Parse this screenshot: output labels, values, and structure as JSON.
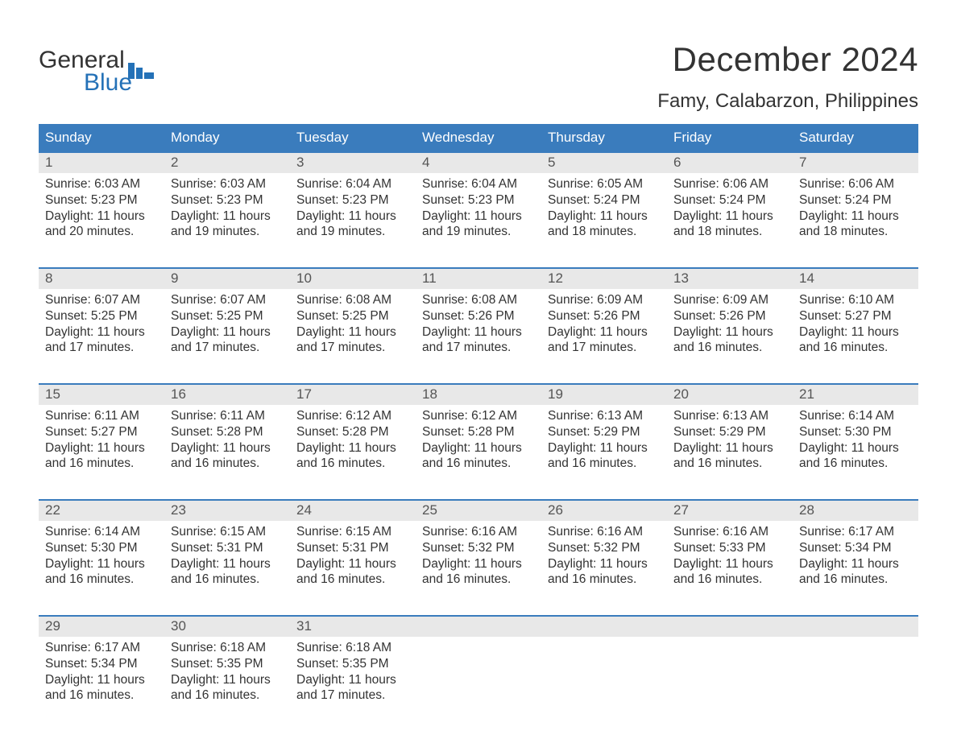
{
  "logo": {
    "line1": "General",
    "line2": "Blue",
    "flag_color": "#2471B7"
  },
  "title": "December 2024",
  "location": "Famy, Calabarzon, Philippines",
  "colors": {
    "header_bg": "#3A7CBD",
    "header_text": "#ffffff",
    "daynum_bg": "#E8E8E8",
    "week_border": "#3A7CBD",
    "body_text": "#333333",
    "logo_blue": "#2471B7"
  },
  "typography": {
    "title_fontsize": 42,
    "location_fontsize": 24,
    "dow_fontsize": 17,
    "daynum_fontsize": 17,
    "info_fontsize": 15.5
  },
  "layout": {
    "columns": 7,
    "rows": 5
  },
  "days_of_week": [
    "Sunday",
    "Monday",
    "Tuesday",
    "Wednesday",
    "Thursday",
    "Friday",
    "Saturday"
  ],
  "weeks": [
    [
      {
        "num": "1",
        "sunrise": "Sunrise: 6:03 AM",
        "sunset": "Sunset: 5:23 PM",
        "daylight1": "Daylight: 11 hours",
        "daylight2": "and 20 minutes."
      },
      {
        "num": "2",
        "sunrise": "Sunrise: 6:03 AM",
        "sunset": "Sunset: 5:23 PM",
        "daylight1": "Daylight: 11 hours",
        "daylight2": "and 19 minutes."
      },
      {
        "num": "3",
        "sunrise": "Sunrise: 6:04 AM",
        "sunset": "Sunset: 5:23 PM",
        "daylight1": "Daylight: 11 hours",
        "daylight2": "and 19 minutes."
      },
      {
        "num": "4",
        "sunrise": "Sunrise: 6:04 AM",
        "sunset": "Sunset: 5:23 PM",
        "daylight1": "Daylight: 11 hours",
        "daylight2": "and 19 minutes."
      },
      {
        "num": "5",
        "sunrise": "Sunrise: 6:05 AM",
        "sunset": "Sunset: 5:24 PM",
        "daylight1": "Daylight: 11 hours",
        "daylight2": "and 18 minutes."
      },
      {
        "num": "6",
        "sunrise": "Sunrise: 6:06 AM",
        "sunset": "Sunset: 5:24 PM",
        "daylight1": "Daylight: 11 hours",
        "daylight2": "and 18 minutes."
      },
      {
        "num": "7",
        "sunrise": "Sunrise: 6:06 AM",
        "sunset": "Sunset: 5:24 PM",
        "daylight1": "Daylight: 11 hours",
        "daylight2": "and 18 minutes."
      }
    ],
    [
      {
        "num": "8",
        "sunrise": "Sunrise: 6:07 AM",
        "sunset": "Sunset: 5:25 PM",
        "daylight1": "Daylight: 11 hours",
        "daylight2": "and 17 minutes."
      },
      {
        "num": "9",
        "sunrise": "Sunrise: 6:07 AM",
        "sunset": "Sunset: 5:25 PM",
        "daylight1": "Daylight: 11 hours",
        "daylight2": "and 17 minutes."
      },
      {
        "num": "10",
        "sunrise": "Sunrise: 6:08 AM",
        "sunset": "Sunset: 5:25 PM",
        "daylight1": "Daylight: 11 hours",
        "daylight2": "and 17 minutes."
      },
      {
        "num": "11",
        "sunrise": "Sunrise: 6:08 AM",
        "sunset": "Sunset: 5:26 PM",
        "daylight1": "Daylight: 11 hours",
        "daylight2": "and 17 minutes."
      },
      {
        "num": "12",
        "sunrise": "Sunrise: 6:09 AM",
        "sunset": "Sunset: 5:26 PM",
        "daylight1": "Daylight: 11 hours",
        "daylight2": "and 17 minutes."
      },
      {
        "num": "13",
        "sunrise": "Sunrise: 6:09 AM",
        "sunset": "Sunset: 5:26 PM",
        "daylight1": "Daylight: 11 hours",
        "daylight2": "and 16 minutes."
      },
      {
        "num": "14",
        "sunrise": "Sunrise: 6:10 AM",
        "sunset": "Sunset: 5:27 PM",
        "daylight1": "Daylight: 11 hours",
        "daylight2": "and 16 minutes."
      }
    ],
    [
      {
        "num": "15",
        "sunrise": "Sunrise: 6:11 AM",
        "sunset": "Sunset: 5:27 PM",
        "daylight1": "Daylight: 11 hours",
        "daylight2": "and 16 minutes."
      },
      {
        "num": "16",
        "sunrise": "Sunrise: 6:11 AM",
        "sunset": "Sunset: 5:28 PM",
        "daylight1": "Daylight: 11 hours",
        "daylight2": "and 16 minutes."
      },
      {
        "num": "17",
        "sunrise": "Sunrise: 6:12 AM",
        "sunset": "Sunset: 5:28 PM",
        "daylight1": "Daylight: 11 hours",
        "daylight2": "and 16 minutes."
      },
      {
        "num": "18",
        "sunrise": "Sunrise: 6:12 AM",
        "sunset": "Sunset: 5:28 PM",
        "daylight1": "Daylight: 11 hours",
        "daylight2": "and 16 minutes."
      },
      {
        "num": "19",
        "sunrise": "Sunrise: 6:13 AM",
        "sunset": "Sunset: 5:29 PM",
        "daylight1": "Daylight: 11 hours",
        "daylight2": "and 16 minutes."
      },
      {
        "num": "20",
        "sunrise": "Sunrise: 6:13 AM",
        "sunset": "Sunset: 5:29 PM",
        "daylight1": "Daylight: 11 hours",
        "daylight2": "and 16 minutes."
      },
      {
        "num": "21",
        "sunrise": "Sunrise: 6:14 AM",
        "sunset": "Sunset: 5:30 PM",
        "daylight1": "Daylight: 11 hours",
        "daylight2": "and 16 minutes."
      }
    ],
    [
      {
        "num": "22",
        "sunrise": "Sunrise: 6:14 AM",
        "sunset": "Sunset: 5:30 PM",
        "daylight1": "Daylight: 11 hours",
        "daylight2": "and 16 minutes."
      },
      {
        "num": "23",
        "sunrise": "Sunrise: 6:15 AM",
        "sunset": "Sunset: 5:31 PM",
        "daylight1": "Daylight: 11 hours",
        "daylight2": "and 16 minutes."
      },
      {
        "num": "24",
        "sunrise": "Sunrise: 6:15 AM",
        "sunset": "Sunset: 5:31 PM",
        "daylight1": "Daylight: 11 hours",
        "daylight2": "and 16 minutes."
      },
      {
        "num": "25",
        "sunrise": "Sunrise: 6:16 AM",
        "sunset": "Sunset: 5:32 PM",
        "daylight1": "Daylight: 11 hours",
        "daylight2": "and 16 minutes."
      },
      {
        "num": "26",
        "sunrise": "Sunrise: 6:16 AM",
        "sunset": "Sunset: 5:32 PM",
        "daylight1": "Daylight: 11 hours",
        "daylight2": "and 16 minutes."
      },
      {
        "num": "27",
        "sunrise": "Sunrise: 6:16 AM",
        "sunset": "Sunset: 5:33 PM",
        "daylight1": "Daylight: 11 hours",
        "daylight2": "and 16 minutes."
      },
      {
        "num": "28",
        "sunrise": "Sunrise: 6:17 AM",
        "sunset": "Sunset: 5:34 PM",
        "daylight1": "Daylight: 11 hours",
        "daylight2": "and 16 minutes."
      }
    ],
    [
      {
        "num": "29",
        "sunrise": "Sunrise: 6:17 AM",
        "sunset": "Sunset: 5:34 PM",
        "daylight1": "Daylight: 11 hours",
        "daylight2": "and 16 minutes."
      },
      {
        "num": "30",
        "sunrise": "Sunrise: 6:18 AM",
        "sunset": "Sunset: 5:35 PM",
        "daylight1": "Daylight: 11 hours",
        "daylight2": "and 16 minutes."
      },
      {
        "num": "31",
        "sunrise": "Sunrise: 6:18 AM",
        "sunset": "Sunset: 5:35 PM",
        "daylight1": "Daylight: 11 hours",
        "daylight2": "and 17 minutes."
      },
      null,
      null,
      null,
      null
    ]
  ]
}
